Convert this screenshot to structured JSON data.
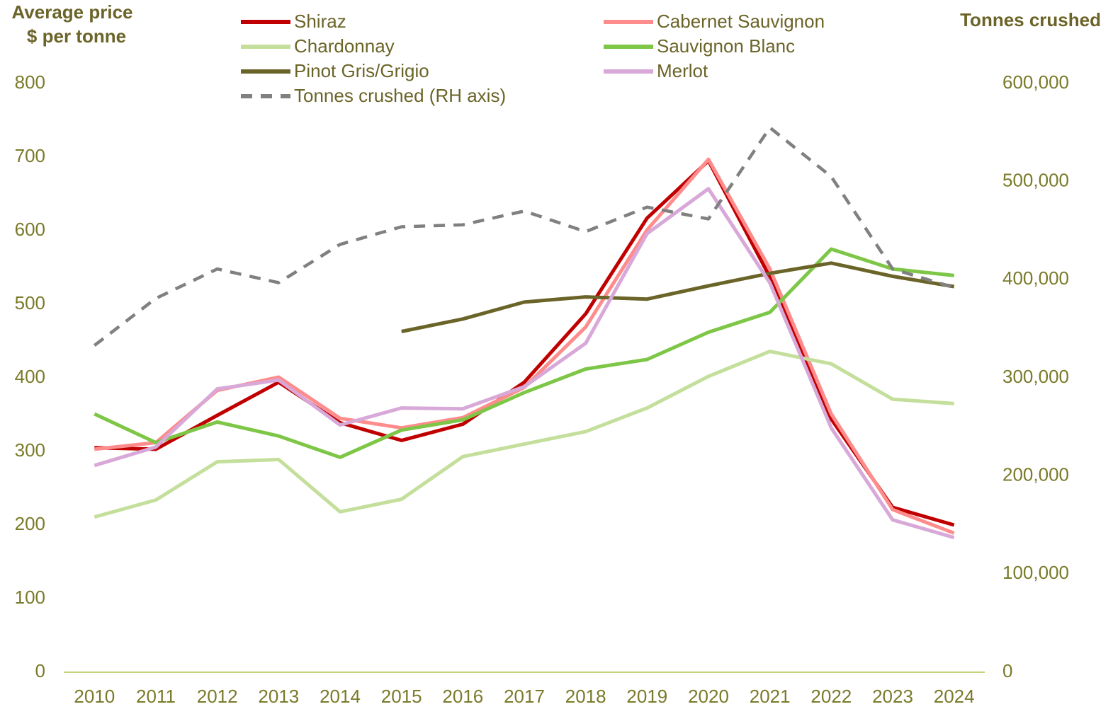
{
  "chart_data": {
    "type": "line",
    "ylabel": [
      "Average price",
      "$ per tonne"
    ],
    "y2label": "Tonnes crushed",
    "categories": [
      "2010",
      "2011",
      "2012",
      "2013",
      "2014",
      "2015",
      "2016",
      "2017",
      "2018",
      "2019",
      "2020",
      "2021",
      "2022",
      "2023",
      "2024"
    ],
    "ylim": [
      0,
      800
    ],
    "yticks": [
      0,
      100,
      200,
      300,
      400,
      500,
      600,
      700,
      800
    ],
    "y2lim": [
      0,
      600000
    ],
    "y2ticks": [
      0,
      {
        "value": 100000,
        "label": "100,000"
      },
      {
        "value": 200000,
        "label": "200,000"
      },
      {
        "value": 300000,
        "label": "300,000"
      },
      {
        "value": 400000,
        "label": "400,000"
      },
      {
        "value": 500000,
        "label": "500,000"
      },
      {
        "value": 600000,
        "label": "600,000"
      }
    ],
    "grid": false,
    "series": [
      {
        "name": "Shiraz",
        "color": "#c00000",
        "values": [
          305,
          303,
          349,
          394,
          339,
          315,
          337,
          394,
          487,
          617,
          695,
          537,
          344,
          224,
          200
        ]
      },
      {
        "name": "Cabernet Sauvignon",
        "color": "#ff8c8c",
        "values": [
          303,
          312,
          383,
          401,
          345,
          332,
          346,
          387,
          469,
          601,
          697,
          548,
          351,
          221,
          189
        ]
      },
      {
        "name": "Chardonnay",
        "color": "#c4df9b",
        "values": [
          211,
          234,
          286,
          289,
          218,
          235,
          293,
          310,
          327,
          359,
          402,
          436,
          419,
          371,
          365
        ]
      },
      {
        "name": "Sauvignon Blanc",
        "color": "#7dc646",
        "values": [
          351,
          312,
          340,
          321,
          292,
          329,
          343,
          380,
          412,
          425,
          462,
          489,
          575,
          548,
          539
        ]
      },
      {
        "name": "Pinot Gris/Grigio",
        "color": "#6b6428",
        "values": [
          null,
          null,
          null,
          null,
          null,
          463,
          480,
          503,
          510,
          507,
          525,
          542,
          556,
          538,
          524
        ]
      },
      {
        "name": "Merlot",
        "color": "#d8a8d8",
        "values": [
          281,
          306,
          385,
          397,
          336,
          359,
          358,
          388,
          447,
          596,
          657,
          529,
          332,
          207,
          183
        ]
      },
      {
        "name": "Tonnes crushed (RH axis)",
        "color": "#808080",
        "dashed": true,
        "axis": "y2",
        "values": [
          333000,
          381000,
          411000,
          397000,
          436000,
          454000,
          456000,
          470000,
          449000,
          474000,
          462000,
          555000,
          505000,
          411000,
          392000
        ]
      }
    ]
  }
}
